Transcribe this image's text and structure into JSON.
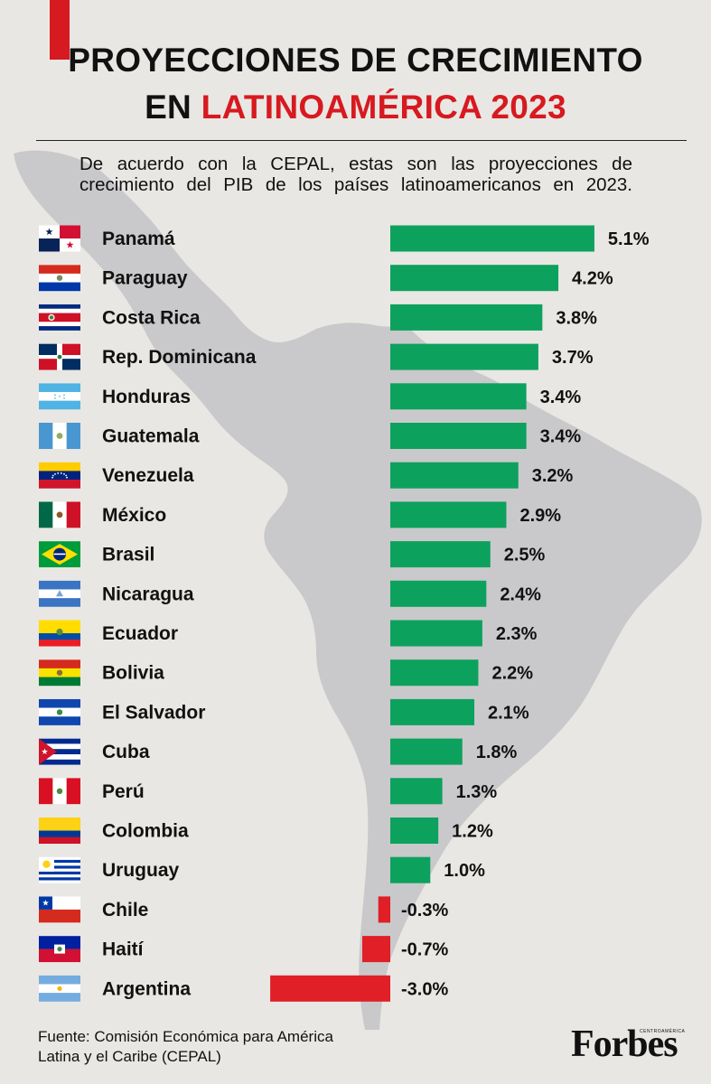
{
  "header": {
    "title_line1": "PROYECCIONES DE CRECIMIENTO",
    "title_line2_prefix": "EN ",
    "title_line2_highlight": "LATINOAMÉRICA 2023",
    "subtitle": "De acuerdo con la CEPAL, estas son las proyecciones de crecimiento del PIB de los países latinoamericanos en 2023."
  },
  "colors": {
    "accent": "#d71920",
    "positive": "#0da15e",
    "negative": "#e01f26",
    "background": "#e9e7e3",
    "map": "#c9c9cb"
  },
  "chart_data": {
    "type": "bar",
    "orientation": "horizontal",
    "title": "PROYECCIONES DE CRECIMIENTO EN LATINOAMÉRICA 2023",
    "unit": "%",
    "categories": [
      "Panamá",
      "Paraguay",
      "Costa Rica",
      "Rep. Dominicana",
      "Honduras",
      "Guatemala",
      "Venezuela",
      "México",
      "Brasil",
      "Nicaragua",
      "Ecuador",
      "Bolivia",
      "El Salvador",
      "Cuba",
      "Perú",
      "Colombia",
      "Uruguay",
      "Chile",
      "Haití",
      "Argentina"
    ],
    "values": [
      5.1,
      4.2,
      3.8,
      3.7,
      3.4,
      3.4,
      3.2,
      2.9,
      2.5,
      2.4,
      2.3,
      2.2,
      2.1,
      1.8,
      1.3,
      1.2,
      1.0,
      -0.3,
      -0.7,
      -3.0
    ],
    "value_labels": [
      "5.1%",
      "4.2%",
      "3.8%",
      "3.7%",
      "3.4%",
      "3.4%",
      "3.2%",
      "2.9%",
      "2.5%",
      "2.4%",
      "2.3%",
      "2.2%",
      "2.1%",
      "1.8%",
      "1.3%",
      "1.2%",
      "1.0%",
      "-0.3%",
      "-0.7%",
      "-3.0%"
    ],
    "flag_icons": [
      "panama-flag-icon",
      "paraguay-flag-icon",
      "costa-rica-flag-icon",
      "dominican-republic-flag-icon",
      "honduras-flag-icon",
      "guatemala-flag-icon",
      "venezuela-flag-icon",
      "mexico-flag-icon",
      "brazil-flag-icon",
      "nicaragua-flag-icon",
      "ecuador-flag-icon",
      "bolivia-flag-icon",
      "el-salvador-flag-icon",
      "cuba-flag-icon",
      "peru-flag-icon",
      "colombia-flag-icon",
      "uruguay-flag-icon",
      "chile-flag-icon",
      "haiti-flag-icon",
      "argentina-flag-icon"
    ],
    "xlim": [
      -3.0,
      5.1
    ],
    "grid": false,
    "legend": "none"
  },
  "footer": {
    "source_line1": "Fuente: Comisión Económica para América",
    "source_line2": "Latina y el Caribe (CEPAL)",
    "logo": "Forbes",
    "logo_sub": "CENTROAMÉRICA"
  }
}
